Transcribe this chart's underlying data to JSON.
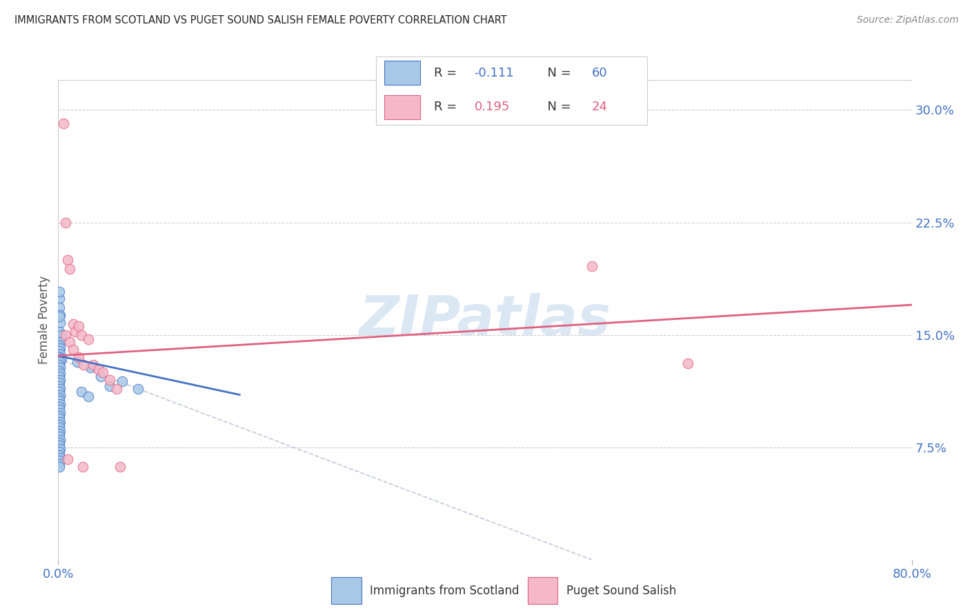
{
  "title": "IMMIGRANTS FROM SCOTLAND VS PUGET SOUND SALISH FEMALE POVERTY CORRELATION CHART",
  "source": "Source: ZipAtlas.com",
  "ylabel_label": "Female Poverty",
  "xlim": [
    0.0,
    0.8
  ],
  "ylim": [
    0.0,
    0.32
  ],
  "ytick_positions": [
    0.075,
    0.15,
    0.225,
    0.3
  ],
  "ytick_labels": [
    "7.5%",
    "15.0%",
    "22.5%",
    "30.0%"
  ],
  "xtick_positions": [
    0.0,
    0.8
  ],
  "xtick_labels": [
    "0.0%",
    "80.0%"
  ],
  "color_blue": "#a8c8e8",
  "color_pink": "#f4b8c8",
  "color_blue_line": "#4472c4",
  "color_pink_line": "#e06080",
  "color_dashed": "#c0c8d8",
  "watermark": "ZIPatlas",
  "scatter_blue": [
    [
      0.001,
      0.174
    ],
    [
      0.001,
      0.168
    ],
    [
      0.002,
      0.163
    ],
    [
      0.001,
      0.179
    ],
    [
      0.002,
      0.158
    ],
    [
      0.001,
      0.162
    ],
    [
      0.002,
      0.148
    ],
    [
      0.001,
      0.152
    ],
    [
      0.003,
      0.15
    ],
    [
      0.002,
      0.145
    ],
    [
      0.001,
      0.143
    ],
    [
      0.002,
      0.141
    ],
    [
      0.001,
      0.139
    ],
    [
      0.002,
      0.137
    ],
    [
      0.001,
      0.135
    ],
    [
      0.003,
      0.134
    ],
    [
      0.002,
      0.132
    ],
    [
      0.001,
      0.13
    ],
    [
      0.002,
      0.128
    ],
    [
      0.001,
      0.126
    ],
    [
      0.002,
      0.124
    ],
    [
      0.001,
      0.122
    ],
    [
      0.002,
      0.12
    ],
    [
      0.001,
      0.118
    ],
    [
      0.001,
      0.116
    ],
    [
      0.002,
      0.114
    ],
    [
      0.001,
      0.112
    ],
    [
      0.002,
      0.11
    ],
    [
      0.001,
      0.108
    ],
    [
      0.001,
      0.106
    ],
    [
      0.002,
      0.104
    ],
    [
      0.001,
      0.102
    ],
    [
      0.001,
      0.1
    ],
    [
      0.002,
      0.098
    ],
    [
      0.001,
      0.096
    ],
    [
      0.001,
      0.094
    ],
    [
      0.002,
      0.092
    ],
    [
      0.001,
      0.09
    ],
    [
      0.001,
      0.088
    ],
    [
      0.002,
      0.086
    ],
    [
      0.001,
      0.084
    ],
    [
      0.001,
      0.082
    ],
    [
      0.002,
      0.08
    ],
    [
      0.001,
      0.078
    ],
    [
      0.001,
      0.076
    ],
    [
      0.002,
      0.074
    ],
    [
      0.001,
      0.072
    ],
    [
      0.001,
      0.07
    ],
    [
      0.002,
      0.068
    ],
    [
      0.001,
      0.066
    ],
    [
      0.001,
      0.064
    ],
    [
      0.001,
      0.062
    ],
    [
      0.03,
      0.128
    ],
    [
      0.04,
      0.122
    ],
    [
      0.06,
      0.119
    ],
    [
      0.075,
      0.114
    ],
    [
      0.018,
      0.132
    ],
    [
      0.022,
      0.112
    ],
    [
      0.048,
      0.116
    ],
    [
      0.028,
      0.109
    ]
  ],
  "scatter_pink": [
    [
      0.005,
      0.291
    ],
    [
      0.007,
      0.225
    ],
    [
      0.009,
      0.2
    ],
    [
      0.011,
      0.194
    ],
    [
      0.014,
      0.157
    ],
    [
      0.016,
      0.152
    ],
    [
      0.019,
      0.156
    ],
    [
      0.022,
      0.15
    ],
    [
      0.028,
      0.147
    ],
    [
      0.033,
      0.13
    ],
    [
      0.038,
      0.127
    ],
    [
      0.042,
      0.125
    ],
    [
      0.048,
      0.12
    ],
    [
      0.055,
      0.114
    ],
    [
      0.007,
      0.15
    ],
    [
      0.011,
      0.145
    ],
    [
      0.014,
      0.14
    ],
    [
      0.019,
      0.135
    ],
    [
      0.024,
      0.13
    ],
    [
      0.058,
      0.062
    ],
    [
      0.5,
      0.196
    ],
    [
      0.59,
      0.131
    ],
    [
      0.009,
      0.067
    ],
    [
      0.023,
      0.062
    ]
  ],
  "blue_line_x": [
    0.0,
    0.17
  ],
  "blue_line_y": [
    0.136,
    0.11
  ],
  "pink_line_x": [
    0.0,
    0.8
  ],
  "pink_line_y": [
    0.136,
    0.17
  ],
  "dashed_line_x": [
    0.0,
    0.5
  ],
  "dashed_line_y": [
    0.134,
    0.0
  ]
}
